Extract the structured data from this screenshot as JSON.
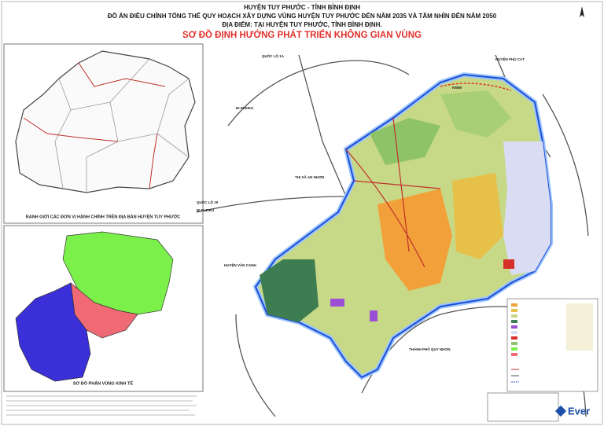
{
  "header": {
    "province": "HUYỆN TUY PHƯỚC - TỈNH BÌNH ĐỊNH",
    "project": "ĐỒ ÁN ĐIỀU CHỈNH TỔNG THỂ QUY HOẠCH XÂY DỰNG VÙNG HUYỆN TUY PHƯỚC ĐẾN NĂM 2035 VÀ TẦM NHÌN ĐẾN NĂM 2050",
    "location": "ĐỊA ĐIỂM: TẠI HUYỆN TUY PHƯỚC, TỈNH BÌNH ĐỊNH.",
    "title": "SƠ ĐỒ ĐỊNH HƯỚNG PHÁT TRIỂN KHÔNG GIAN VÙNG"
  },
  "insets": [
    {
      "caption": "RANH GIỚI CÁC ĐƠN VỊ HÀNH CHÍNH TRÊN ĐỊA BÀN HUYỆN TUY PHƯỚC"
    },
    {
      "caption": "SƠ ĐỒ PHÂN VÙNG KINH TẾ"
    }
  ],
  "map_labels": [
    "KM65",
    "ĐI PLEIKU",
    "ĐI PLEIKU",
    "THỊ XÃ AN NHƠN",
    "HUYỆN VÂN CANH",
    "THÀNH PHỐ QUY NHƠN",
    "HUYỆN PHÙ CÁT",
    "QUỐC LỘ 1A",
    "QUỐC LỘ 19"
  ],
  "logo": "Ever"
}
